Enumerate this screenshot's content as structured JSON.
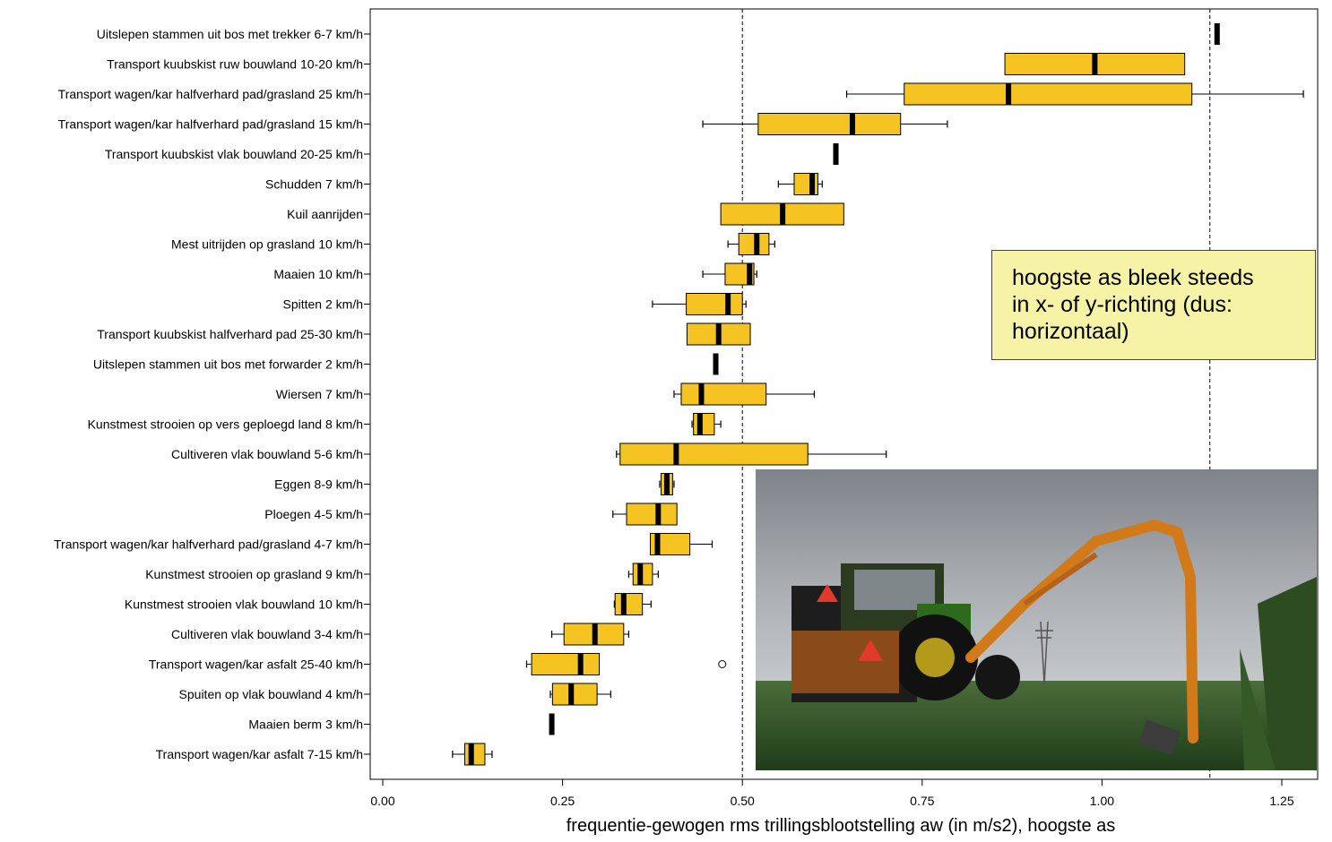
{
  "chart_data": {
    "type": "boxplot",
    "orientation": "horizontal",
    "xlabel": "frequentie-gewogen rms trillingsblootstelling aw (in m/s2), hoogste as",
    "ylabel": "",
    "xlim": [
      -0.02,
      1.3
    ],
    "xticks": [
      0.0,
      0.25,
      0.5,
      0.75,
      1.0,
      1.25
    ],
    "xtick_labels": [
      "0.00",
      "0.25",
      "0.50",
      "0.75",
      "1.00",
      "1.25"
    ],
    "reference_lines": [
      0.5,
      1.15
    ],
    "box_color": "#f5c423",
    "categories": [
      "Uitslepen stammen uit bos met trekker 6-7 km/h",
      "Transport kuubskist ruw bouwland 10-20 km/h",
      "Transport wagen/kar halfverhard pad/grasland 25 km/h",
      "Transport wagen/kar halfverhard pad/grasland 15 km/h",
      "Transport kuubskist vlak bouwland 20-25 km/h",
      "Schudden 7 km/h",
      "Kuil aanrijden",
      "Mest uitrijden op grasland 10 km/h",
      "Maaien 10 km/h",
      "Spitten 2 km/h",
      "Transport kuubskist halfverhard pad 25-30 km/h",
      "Uitslepen stammen uit bos met forwarder 2 km/h",
      "Wiersen 7 km/h",
      "Kunstmest strooien op vers geploegd land 8 km/h",
      "Cultiveren vlak bouwland 5-6 km/h",
      "Eggen 8-9 km/h",
      "Ploegen 4-5 km/h",
      "Transport wagen/kar halfverhard pad/grasland 4-7 km/h",
      "Kunstmest strooien op grasland 9 km/h",
      "Kunstmest strooien  vlak bouwland 10 km/h",
      "Cultiveren vlak bouwland 3-4 km/h",
      "Transport wagen/kar asfalt 25-40 km/h",
      "Spuiten op vlak bouwland 4 km/h",
      "Maaien berm 3 km/h",
      "Transport wagen/kar asfalt 7-15 km/h"
    ],
    "boxes": [
      {
        "min": null,
        "q1": null,
        "median": 1.16,
        "q3": null,
        "max": null
      },
      {
        "min": null,
        "q1": 0.865,
        "median": 0.99,
        "q3": 1.115,
        "max": null
      },
      {
        "min": 0.645,
        "q1": 0.725,
        "median": 0.87,
        "q3": 1.125,
        "max": 1.28
      },
      {
        "min": 0.445,
        "q1": 0.522,
        "median": 0.653,
        "q3": 0.72,
        "max": 0.785
      },
      {
        "min": null,
        "q1": null,
        "median": 0.63,
        "q3": null,
        "max": null
      },
      {
        "min": 0.55,
        "q1": 0.572,
        "median": 0.597,
        "q3": 0.605,
        "max": 0.611
      },
      {
        "min": null,
        "q1": 0.47,
        "median": 0.556,
        "q3": 0.641,
        "max": null
      },
      {
        "min": 0.48,
        "q1": 0.495,
        "median": 0.52,
        "q3": 0.537,
        "max": 0.545
      },
      {
        "min": 0.445,
        "q1": 0.476,
        "median": 0.51,
        "q3": 0.516,
        "max": 0.52
      },
      {
        "min": 0.375,
        "q1": 0.422,
        "median": 0.48,
        "q3": 0.5,
        "max": 0.505
      },
      {
        "min": null,
        "q1": 0.423,
        "median": 0.467,
        "q3": 0.511,
        "max": null
      },
      {
        "min": null,
        "q1": null,
        "median": 0.463,
        "q3": null,
        "max": null
      },
      {
        "min": 0.405,
        "q1": 0.415,
        "median": 0.443,
        "q3": 0.533,
        "max": 0.6
      },
      {
        "min": 0.43,
        "q1": 0.432,
        "median": 0.441,
        "q3": 0.461,
        "max": 0.47
      },
      {
        "min": 0.325,
        "q1": 0.33,
        "median": 0.408,
        "q3": 0.591,
        "max": 0.7
      },
      {
        "min": 0.385,
        "q1": 0.387,
        "median": 0.395,
        "q3": 0.403,
        "max": 0.405
      },
      {
        "min": 0.32,
        "q1": 0.339,
        "median": 0.383,
        "q3": 0.409,
        "max": null
      },
      {
        "min": null,
        "q1": 0.372,
        "median": 0.382,
        "q3": 0.427,
        "max": 0.458
      },
      {
        "min": 0.342,
        "q1": 0.348,
        "median": 0.358,
        "q3": 0.375,
        "max": 0.383
      },
      {
        "min": 0.322,
        "q1": 0.323,
        "median": 0.335,
        "q3": 0.361,
        "max": 0.373
      },
      {
        "min": 0.235,
        "q1": 0.252,
        "median": 0.295,
        "q3": 0.335,
        "max": 0.342
      },
      {
        "min": 0.2,
        "q1": 0.207,
        "median": 0.275,
        "q3": 0.301,
        "max": null,
        "outliers": [
          0.472
        ]
      },
      {
        "min": 0.233,
        "q1": 0.236,
        "median": 0.262,
        "q3": 0.298,
        "max": 0.317
      },
      {
        "min": null,
        "q1": null,
        "median": 0.235,
        "q3": null,
        "max": null
      },
      {
        "min": 0.097,
        "q1": 0.114,
        "median": 0.123,
        "q3": 0.142,
        "max": 0.152
      }
    ]
  },
  "annotation": {
    "lines": [
      "hoogste as bleek steeds",
      "in x- of y-richting (dus:",
      "horizontaal)"
    ]
  },
  "photo": {
    "subject": "tractor with roadside mowing arm on grassland"
  }
}
